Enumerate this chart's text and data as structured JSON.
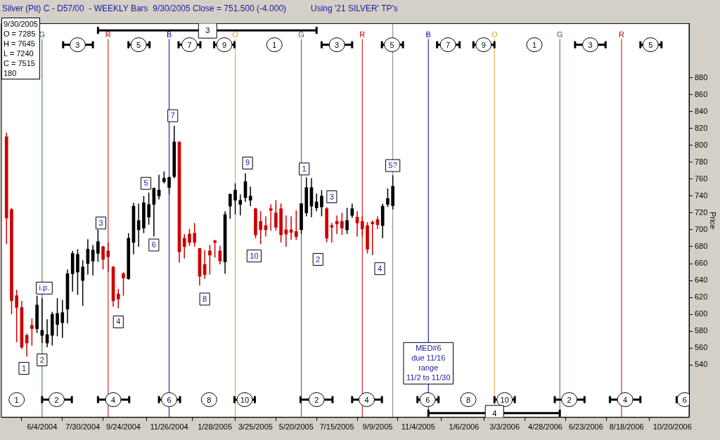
{
  "chart_data": {
    "type": "candlestick",
    "title": "Silver (Pit) C - D57/00  - WEEKLY Bars  9/30/2005 Close = 751.500 (-4.000)",
    "subtitle": "Using '21 SILVER' TP's",
    "ylabel": "Price",
    "x": [
      "2004-04-16",
      "2004-04-23",
      "2004-04-30",
      "2004-05-07",
      "2004-05-14",
      "2004-05-21",
      "2004-05-28",
      "2004-06-04",
      "2004-06-11",
      "2004-06-18",
      "2004-06-25",
      "2004-07-02",
      "2004-07-09",
      "2004-07-16",
      "2004-07-23",
      "2004-07-30",
      "2004-08-06",
      "2004-08-13",
      "2004-08-20",
      "2004-08-27",
      "2004-09-03",
      "2004-09-10",
      "2004-09-17",
      "2004-09-24",
      "2004-10-01",
      "2004-10-08",
      "2004-10-15",
      "2004-10-22",
      "2004-10-29",
      "2004-11-05",
      "2004-11-12",
      "2004-11-19",
      "2004-11-26",
      "2004-12-03",
      "2004-12-10",
      "2004-12-17",
      "2004-12-24",
      "2004-12-31",
      "2005-01-07",
      "2005-01-14",
      "2005-01-21",
      "2005-01-28",
      "2005-02-04",
      "2005-02-11",
      "2005-02-18",
      "2005-02-25",
      "2005-03-04",
      "2005-03-11",
      "2005-03-18",
      "2005-03-25",
      "2005-04-01",
      "2005-04-08",
      "2005-04-15",
      "2005-04-22",
      "2005-04-29",
      "2005-05-06",
      "2005-05-13",
      "2005-05-20",
      "2005-05-27",
      "2005-06-03",
      "2005-06-10",
      "2005-06-17",
      "2005-06-24",
      "2005-07-01",
      "2005-07-08",
      "2005-07-15",
      "2005-07-22",
      "2005-07-29",
      "2005-08-05",
      "2005-08-12",
      "2005-08-19",
      "2005-08-26",
      "2005-09-02",
      "2005-09-09",
      "2005-09-16",
      "2005-09-23",
      "2005-09-30"
    ],
    "ohlc": [
      [
        810,
        815,
        683,
        714
      ],
      [
        724,
        726,
        600,
        616
      ],
      [
        622,
        629,
        567,
        608
      ],
      [
        608,
        616,
        559,
        561
      ],
      [
        575,
        577,
        550,
        566
      ],
      [
        587,
        595,
        563,
        583
      ],
      [
        583,
        622,
        578,
        611
      ],
      [
        575,
        619,
        566,
        581
      ],
      [
        566,
        594,
        561,
        576
      ],
      [
        575,
        603,
        563,
        600
      ],
      [
        588,
        619,
        574,
        601
      ],
      [
        590,
        617,
        572,
        602
      ],
      [
        606,
        653,
        589,
        648
      ],
      [
        648,
        675,
        627,
        672
      ],
      [
        650,
        677,
        623,
        671
      ],
      [
        640,
        664,
        610,
        656
      ],
      [
        660,
        689,
        647,
        677
      ],
      [
        663,
        682,
        646,
        676
      ],
      [
        672,
        700,
        662,
        686
      ],
      [
        680,
        681,
        653,
        665
      ],
      [
        675,
        685,
        650,
        668
      ],
      [
        656,
        657,
        609,
        616
      ],
      [
        624,
        630,
        607,
        618
      ],
      [
        648,
        650,
        622,
        643
      ],
      [
        642,
        696,
        641,
        690
      ],
      [
        685,
        732,
        671,
        728
      ],
      [
        700,
        731,
        680,
        711
      ],
      [
        702,
        740,
        696,
        732
      ],
      [
        715,
        744,
        706,
        730
      ],
      [
        730,
        750,
        692,
        749
      ],
      [
        740,
        765,
        736,
        747
      ],
      [
        757,
        769,
        755,
        761
      ],
      [
        750,
        763,
        742,
        762
      ],
      [
        763,
        823,
        761,
        804
      ],
      [
        804,
        804,
        661,
        674
      ],
      [
        690,
        695,
        666,
        680
      ],
      [
        695,
        701,
        681,
        685
      ],
      [
        696,
        708,
        680,
        685
      ],
      [
        678,
        678,
        634,
        645
      ],
      [
        659,
        676,
        642,
        647
      ],
      [
        675,
        682,
        647,
        670
      ],
      [
        687,
        688,
        667,
        685
      ],
      [
        675,
        681,
        659,
        663
      ],
      [
        662,
        722,
        648,
        718
      ],
      [
        728,
        743,
        713,
        742
      ],
      [
        735,
        755,
        718,
        747
      ],
      [
        730,
        742,
        717,
        735
      ],
      [
        738,
        767,
        733,
        757
      ],
      [
        735,
        751,
        728,
        740
      ],
      [
        725,
        726,
        690,
        694
      ],
      [
        710,
        722,
        683,
        700
      ],
      [
        705,
        716,
        692,
        700
      ],
      [
        725,
        730,
        699,
        723
      ],
      [
        720,
        735,
        699,
        703
      ],
      [
        725,
        731,
        685,
        694
      ],
      [
        700,
        717,
        680,
        695
      ],
      [
        700,
        716,
        688,
        697
      ],
      [
        698,
        723,
        688,
        692
      ],
      [
        700,
        731,
        695,
        731
      ],
      [
        720,
        762,
        716,
        750
      ],
      [
        728,
        761,
        715,
        750
      ],
      [
        726,
        743,
        722,
        733
      ],
      [
        727,
        747,
        716,
        740
      ],
      [
        725,
        727,
        685,
        690
      ],
      [
        705,
        708,
        685,
        703
      ],
      [
        710,
        717,
        695,
        707
      ],
      [
        710,
        720,
        694,
        702
      ],
      [
        700,
        726,
        695,
        711
      ],
      [
        717,
        731,
        714,
        725
      ],
      [
        715,
        722,
        692,
        708
      ],
      [
        710,
        716,
        692,
        701
      ],
      [
        705,
        709,
        672,
        677
      ],
      [
        709,
        711,
        670,
        707
      ],
      [
        712,
        716,
        701,
        706
      ],
      [
        705,
        731,
        690,
        728
      ],
      [
        730,
        749,
        727,
        737
      ],
      [
        728.5,
        764.5,
        724,
        751.5
      ]
    ],
    "colors": [
      "#cc0000",
      "#cc0000",
      "#cc0000",
      "#cc0000",
      "#cc0000",
      "#cc0000",
      "#000000",
      "#000000",
      "#000000",
      "#000000",
      "#000000",
      "#000000",
      "#000000",
      "#000000",
      "#000000",
      "#000000",
      "#000000",
      "#000000",
      "#000000",
      "#cc0000",
      "#cc0000",
      "#cc0000",
      "#cc0000",
      "#cc0000",
      "#000000",
      "#000000",
      "#000000",
      "#000000",
      "#000000",
      "#000000",
      "#000000",
      "#000000",
      "#000000",
      "#000000",
      "#cc0000",
      "#cc0000",
      "#cc0000",
      "#cc0000",
      "#cc0000",
      "#cc0000",
      "#cc0000",
      "#cc0000",
      "#cc0000",
      "#000000",
      "#000000",
      "#000000",
      "#000000",
      "#000000",
      "#000000",
      "#cc0000",
      "#cc0000",
      "#cc0000",
      "#cc0000",
      "#cc0000",
      "#cc0000",
      "#cc0000",
      "#cc0000",
      "#cc0000",
      "#000000",
      "#000000",
      "#000000",
      "#000000",
      "#000000",
      "#cc0000",
      "#cc0000",
      "#cc0000",
      "#cc0000",
      "#000000",
      "#000000",
      "#cc0000",
      "#cc0000",
      "#cc0000",
      "#cc0000",
      "#cc0000",
      "#000000",
      "#000000",
      "#000000"
    ],
    "xlim": [
      "2004-04-09",
      "2006-11-12"
    ],
    "xticks": [
      {
        "value": "2004-06-04",
        "label": "6/4/2004"
      },
      {
        "value": "2004-07-30",
        "label": "7/30/2004"
      },
      {
        "value": "2004-09-24",
        "label": "9/24/2004"
      },
      {
        "value": "2004-11-26",
        "label": "11/26/2004"
      },
      {
        "value": "2005-01-28",
        "label": "1/28/2005"
      },
      {
        "value": "2005-03-25",
        "label": "3/25/2005"
      },
      {
        "value": "2005-05-20",
        "label": "5/20/2005"
      },
      {
        "value": "2005-07-15",
        "label": "7/15/2005"
      },
      {
        "value": "2005-09-09",
        "label": "9/9/2005"
      },
      {
        "value": "2005-11-04",
        "label": "11/4/2005"
      },
      {
        "value": "2006-01-06",
        "label": "1/6/2006"
      },
      {
        "value": "2006-03-03",
        "label": "3/3/2006"
      },
      {
        "value": "2006-04-28",
        "label": "4/28/2006"
      },
      {
        "value": "2006-06-23",
        "label": "6/23/2006"
      },
      {
        "value": "2006-08-18",
        "label": "8/18/2006"
      },
      {
        "value": "2006-10-20",
        "label": "10/20/2006"
      }
    ],
    "ylim": [
      478,
      944
    ],
    "yticks": [
      540,
      560,
      580,
      600,
      620,
      640,
      660,
      680,
      700,
      720,
      740,
      760,
      780,
      800,
      820,
      840,
      860,
      880
    ],
    "grid": false,
    "legend": false,
    "ref_lines": [
      {
        "axis": "x",
        "value": "2004-06-04",
        "label": "G",
        "color": "#2e6b2e"
      },
      {
        "axis": "x",
        "value": "2004-09-03",
        "label": "R",
        "color": "#cc0000"
      },
      {
        "axis": "x",
        "value": "2004-11-26",
        "label": "B",
        "color": "#0000aa"
      },
      {
        "axis": "x",
        "value": "2005-02-25",
        "label": "O",
        "color": "#e0a030"
      },
      {
        "axis": "x",
        "value": "2005-05-27",
        "label": "G",
        "color": "#2e6b2e"
      },
      {
        "axis": "x",
        "value": "2005-08-19",
        "label": "R",
        "color": "#cc0000"
      },
      {
        "axis": "x",
        "value": "2005-09-30",
        "label": null,
        "color": "#808080"
      },
      {
        "axis": "x",
        "value": "2005-11-18",
        "label": "B",
        "color": "#0000aa"
      },
      {
        "axis": "x",
        "value": "2006-02-17",
        "label": "O",
        "color": "#e0a030"
      },
      {
        "axis": "x",
        "value": "2006-05-18",
        "label": "G",
        "color": "#2e6b2e"
      },
      {
        "axis": "x",
        "value": "2006-08-11",
        "label": "R",
        "color": "#cc0000"
      }
    ],
    "annotations": [
      "9/30/2005\nO = 7285\nH = 7645\nL = 7240\nC = 7515\n180",
      {
        "text": "1",
        "x": "2004-05-10",
        "y": 536
      },
      {
        "text": "i.p.",
        "x": "2004-06-07",
        "y": 631
      },
      {
        "text": "2",
        "x": "2004-06-04",
        "y": 546
      },
      {
        "text": "3",
        "x": "2004-08-24",
        "y": 708
      },
      {
        "text": "4",
        "x": "2004-09-17",
        "y": 591
      },
      {
        "text": "5",
        "x": "2004-10-25",
        "y": 755
      },
      {
        "text": "6",
        "x": "2004-11-05",
        "y": 682
      },
      {
        "text": "7",
        "x": "2004-12-01",
        "y": 835
      },
      {
        "text": "8",
        "x": "2005-01-14",
        "y": 618
      },
      {
        "text": "9",
        "x": "2005-03-14",
        "y": 779
      },
      {
        "text": "10",
        "x": "2005-03-23",
        "y": 669
      },
      {
        "text": "1",
        "x": "2005-05-31",
        "y": 772
      },
      {
        "text": "2",
        "x": "2005-06-19",
        "y": 665
      },
      {
        "text": "3",
        "x": "2005-07-08",
        "y": 739
      },
      {
        "text": "4",
        "x": "2005-09-12",
        "y": 654
      },
      {
        "text": "5?",
        "x": "2005-09-30",
        "y": 776
      },
      {
        "text": "MED#6\ndue 11/16\nrange\n11/2 to 11/30",
        "x": "2005-11-18",
        "y": 542
      },
      {
        "text": "3",
        "x": "2004-07-23",
        "y": 919
      },
      {
        "text": "5",
        "x": "2004-10-15",
        "y": 919
      },
      {
        "text": "7",
        "x": "2004-12-24",
        "y": 919
      },
      {
        "text": "9",
        "x": "2005-02-10",
        "y": 919
      },
      {
        "text": "1",
        "x": "2005-04-20",
        "y": 919
      },
      {
        "text": "3",
        "x": "2005-07-15",
        "y": 919
      },
      {
        "text": "5",
        "x": "2005-09-29",
        "y": 919
      },
      {
        "text": "7",
        "x": "2005-12-15",
        "y": 919
      },
      {
        "text": "9",
        "x": "2006-02-02",
        "y": 919
      },
      {
        "text": "1",
        "x": "2006-04-13",
        "y": 919
      },
      {
        "text": "3",
        "x": "2006-06-29",
        "y": 919
      },
      {
        "text": "5",
        "x": "2006-09-20",
        "y": 919
      },
      {
        "text": "3",
        "x": "2005-01-18",
        "y": 936
      },
      {
        "text": "1",
        "x": "2004-04-30",
        "y": 499
      },
      {
        "text": "2",
        "x": "2004-06-24",
        "y": 499
      },
      {
        "text": "4",
        "x": "2004-09-10",
        "y": 499
      },
      {
        "text": "6",
        "x": "2004-11-26",
        "y": 499
      },
      {
        "text": "8",
        "x": "2005-01-20",
        "y": 499
      },
      {
        "text": "10",
        "x": "2005-03-10",
        "y": 499
      },
      {
        "text": "2",
        "x": "2005-06-17",
        "y": 499
      },
      {
        "text": "4",
        "x": "2005-08-25",
        "y": 499
      },
      {
        "text": "6",
        "x": "2005-11-17",
        "y": 499
      },
      {
        "text": "8",
        "x": "2006-01-12",
        "y": 499
      },
      {
        "text": "10",
        "x": "2006-03-03",
        "y": 499
      },
      {
        "text": "2",
        "x": "2006-05-31",
        "y": 499
      },
      {
        "text": "4",
        "x": "2006-08-16",
        "y": 499
      },
      {
        "text": "6",
        "x": "2006-11-06",
        "y": 499
      },
      {
        "text": "4",
        "x": "2006-02-17",
        "y": 483
      }
    ]
  }
}
